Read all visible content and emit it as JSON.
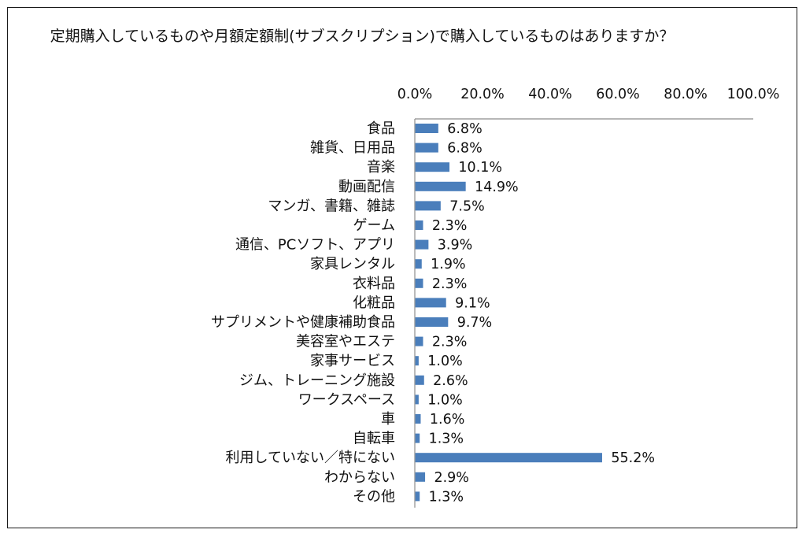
{
  "chart_data": {
    "type": "bar",
    "orientation": "horizontal",
    "title": "定期購入しているものや月額定額制(サブスクリプション)で購入しているものはありますか？",
    "xlabel": "",
    "ylabel": "",
    "xlim": [
      0,
      100
    ],
    "x_ticks": [
      "0.0%",
      "20.0%",
      "40.0%",
      "60.0%",
      "80.0%",
      "100.0%"
    ],
    "x_axis_position": "top",
    "grid": false,
    "legend": "none",
    "bar_color": "#4a7ebb",
    "categories": [
      "食品",
      "雑貨、日用品",
      "音楽",
      "動画配信",
      "マンガ、書籍、雑誌",
      "ゲーム",
      "通信、PCソフト、アプリ",
      "家具レンタル",
      "衣料品",
      "化粧品",
      "サプリメントや健康補助食品",
      "美容室やエステ",
      "家事サービス",
      "ジム、トレーニング施設",
      "ワークスペース",
      "車",
      "自転車",
      "利用していない／特にない",
      "わからない",
      "その他"
    ],
    "values": [
      6.8,
      6.8,
      10.1,
      14.9,
      7.5,
      2.3,
      3.9,
      1.9,
      2.3,
      9.1,
      9.7,
      2.3,
      1.0,
      2.6,
      1.0,
      1.6,
      1.3,
      55.2,
      2.9,
      1.3
    ],
    "data_labels": [
      "6.8%",
      "6.8%",
      "10.1%",
      "14.9%",
      "7.5%",
      "2.3%",
      "3.9%",
      "1.9%",
      "2.3%",
      "9.1%",
      "9.7%",
      "2.3%",
      "1.0%",
      "2.6%",
      "1.0%",
      "1.6%",
      "1.3%",
      "55.2%",
      "2.9%",
      "1.3%"
    ]
  }
}
